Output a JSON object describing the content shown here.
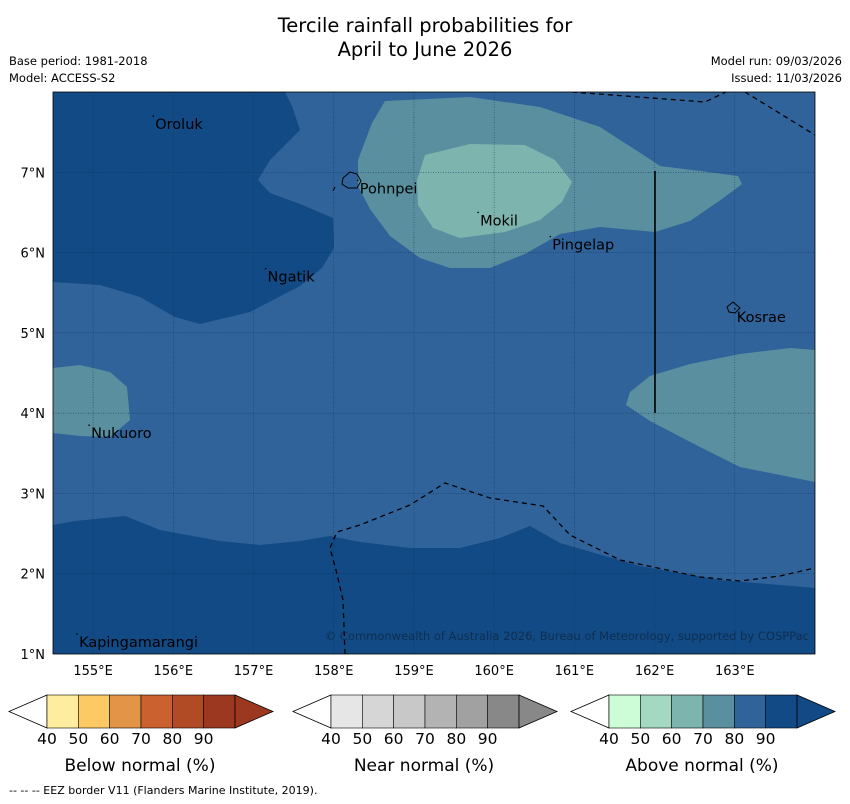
{
  "title_line1": "Tercile rainfall probabilities for",
  "title_line2": "April to June 2026",
  "base_period": "Base period: 1981-2018",
  "model": "Model: ACCESS-S2",
  "model_run": "Model run: 09/03/2026",
  "issued": "Issued: 11/03/2026",
  "copyright": "© Commonwealth of Australia 2026, Bureau of Meteorology, supported by COSPPac",
  "lon_labels": [
    "155°E",
    "156°E",
    "157°E",
    "158°E",
    "159°E",
    "160°E",
    "161°E",
    "162°E",
    "163°E"
  ],
  "lat_labels": [
    "7°N",
    "6°N",
    "5°N",
    "4°N",
    "3°N",
    "2°N",
    "1°N"
  ],
  "places": [
    {
      "name": "Oroluk",
      "lon": 155.75,
      "lat": 7.7
    },
    {
      "name": "Pohnpei",
      "lon": 158.3,
      "lat": 6.9
    },
    {
      "name": "Mokil",
      "lon": 159.8,
      "lat": 6.5
    },
    {
      "name": "Pingelap",
      "lon": 160.7,
      "lat": 6.2
    },
    {
      "name": "Ngatik",
      "lon": 157.15,
      "lat": 5.8
    },
    {
      "name": "Kosrae",
      "lon": 163.0,
      "lat": 5.3
    },
    {
      "name": "Nukuoro",
      "lon": 154.95,
      "lat": 3.85
    },
    {
      "name": "Kapingamarangi",
      "lon": 154.8,
      "lat": 1.25
    }
  ],
  "colorbars": [
    {
      "title": "Below normal (%)",
      "ticks": [
        "40",
        "50",
        "60",
        "70",
        "80",
        "90"
      ],
      "colors": [
        "#ffed9f",
        "#fdc965",
        "#e29547",
        "#cb612f",
        "#b14b26",
        "#9c3720"
      ]
    },
    {
      "title": "Near normal (%)",
      "ticks": [
        "40",
        "50",
        "60",
        "70",
        "80",
        "90"
      ],
      "colors": [
        "#e6e6e6",
        "#d6d6d6",
        "#c8c8c8",
        "#b3b3b3",
        "#a1a1a1",
        "#888888"
      ]
    },
    {
      "title": "Above normal (%)",
      "ticks": [
        "40",
        "50",
        "60",
        "70",
        "80",
        "90"
      ],
      "colors": [
        "#cdfdd6",
        "#a3d9c3",
        "#7db5ae",
        "#5a8fa0",
        "#30639a",
        "#114a84"
      ]
    }
  ],
  "footer": "-- -- -- EEZ border V11 (Flanders Marine Institute, 2019)."
}
